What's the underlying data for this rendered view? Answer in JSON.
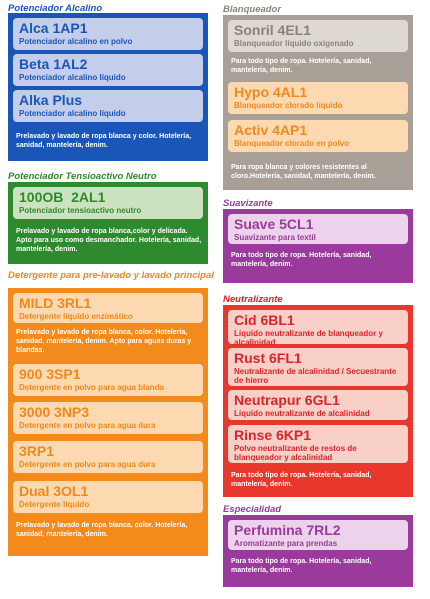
{
  "colors": {
    "blue": "#1a56b8",
    "blue_card": "#c4ceea",
    "green": "#2e8a2e",
    "green_card": "#cde2c0",
    "orange": "#f28a1c",
    "orange_card": "#fcd9b0",
    "orange_text": "#f08a1c",
    "gray": "#a8a096",
    "gray_card": "#ddd9d2",
    "purple": "#9a3a9c",
    "purple_card": "#ecd2ea",
    "red": "#e8382e",
    "red_card": "#f8d0c8",
    "red_text": "#d8262a"
  },
  "potenciador": {
    "title": "Potenciador Alcalino",
    "cards": [
      {
        "name": "Alca 1AP1",
        "sub": "Potenciador alcalino en polvo"
      },
      {
        "name": "Beta 1AL2",
        "sub": "Potenciador alcalino líquido"
      },
      {
        "name": "Alka Plus",
        "sub": "Potenciador alcalino líquido"
      }
    ],
    "desc": "Prelavado y lavado de ropa blanca y color. Hotelería, sanidad, mantelería, denim."
  },
  "tensioactivo": {
    "title": "Potenciador Tensioactivo Neutro",
    "cards": [
      {
        "name": "100OB  2AL1",
        "sub": "Potenciador tensioactivo neutro"
      }
    ],
    "desc": "Prelavado y lavado de ropa blanca,color y delicada. Apto para uso como desmanchador. Hotelería, sanidad, mantelería, denim."
  },
  "detergente": {
    "title": "Detergente para pre-lavado y lavado principal",
    "cards": [
      {
        "name": "MILD 3RL1",
        "sub": "Detergente líquido enzimático",
        "desc": "Prelavado y lavado de ropa blanca, color. Hotelería, sanidad, mantelería, denim. Apto para aguas duras y blandas."
      },
      {
        "name": "900 3SP1",
        "sub": "Detergente en polvo para agua blanda"
      },
      {
        "name": "3000 3NP3",
        "sub": "Detergente en polvo para agua dura"
      },
      {
        "name": "3RP1",
        "sub": "Detergente en polvo para agua dura"
      },
      {
        "name": "Dual 3OL1",
        "sub": "Detergente líquido"
      }
    ],
    "desc": "Prelavado y lavado de ropa blanca, color. Hotelería, sanidad, mantelería, denim."
  },
  "blanqueador": {
    "title": "Blanqueador",
    "cards": [
      {
        "name": "Sonril 4EL1",
        "sub": "Blanqueador líquido oxigenado",
        "desc": "Para todo tipo de ropa. Hotelería, sanidad, mantelería, denim."
      },
      {
        "name": "Hypo 4AL1",
        "sub": "Blanqueador clorado líquido"
      },
      {
        "name": "Activ 4AP1",
        "sub": "Blanqueador clorado en polvo"
      }
    ],
    "desc": "Para ropa blanca y colores resistentes al cloro.Hotelería, sanidad, mantelería, denim."
  },
  "suavizante": {
    "title": "Suavizante",
    "cards": [
      {
        "name": "Suave 5CL1",
        "sub": "Suavizante para textil"
      }
    ],
    "desc": "Para todo tipo de ropa. Hotelería, sanidad, mantelería, denim."
  },
  "neutralizante": {
    "title": "Neutralizante",
    "cards": [
      {
        "name": "Cid 6BL1",
        "sub": "Líquido neutralizante de blanqueador y alcalinidad"
      },
      {
        "name": "Rust 6FL1",
        "sub": "Neutralizante de alcalinidad / Secuestrante de hierro"
      },
      {
        "name": "Neutrapur 6GL1",
        "sub": "Líquido neutralizante de alcalinidad"
      },
      {
        "name": "Rinse 6KP1",
        "sub": "Polvo neutralizante de restos de blanqueador y alcalinidad"
      }
    ],
    "desc": "Para todo tipo de ropa. Hotelería, sanidad, mantelería, denim."
  },
  "especialidad": {
    "title": "Especialidad",
    "cards": [
      {
        "name": "Perfumina 7RL2",
        "sub": "Aromatizante para prendas"
      }
    ],
    "desc": "Para todo tipo de ropa. Hotelería, sanidad, mantelería, denim."
  }
}
